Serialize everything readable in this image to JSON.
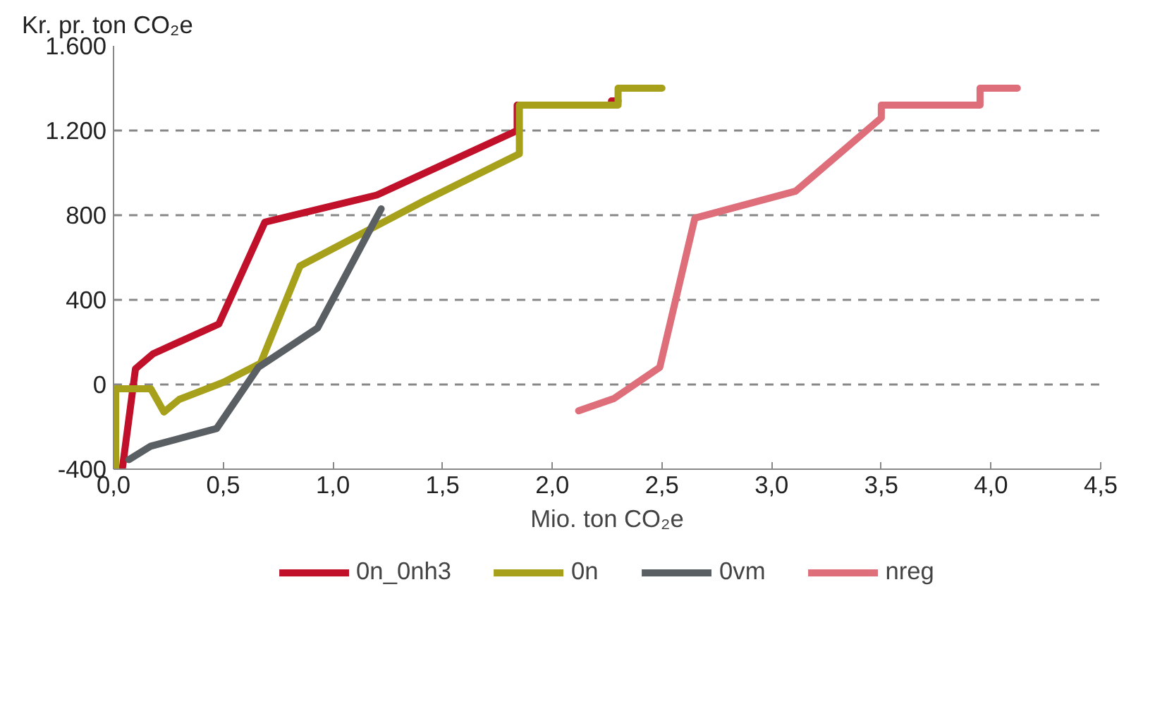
{
  "chart_data": {
    "type": "line",
    "ylabel": "Kr. pr. ton CO₂e",
    "xlabel": "Mio. ton CO₂e",
    "xlim": [
      0,
      4.5
    ],
    "ylim": [
      -400,
      1600
    ],
    "xticks": [
      {
        "value": 0,
        "label": "0,0"
      },
      {
        "value": 0.5,
        "label": "0,5"
      },
      {
        "value": 1,
        "label": "1,0"
      },
      {
        "value": 1.5,
        "label": "1,5"
      },
      {
        "value": 2,
        "label": "2,0"
      },
      {
        "value": 2.5,
        "label": "2,5"
      },
      {
        "value": 3,
        "label": "3,0"
      },
      {
        "value": 3.5,
        "label": "3,5"
      },
      {
        "value": 4,
        "label": "4,0"
      },
      {
        "value": 4.5,
        "label": "4,5"
      }
    ],
    "yticks": [
      {
        "value": -400,
        "label": "-400"
      },
      {
        "value": 0,
        "label": "0"
      },
      {
        "value": 400,
        "label": "400"
      },
      {
        "value": 800,
        "label": "800"
      },
      {
        "value": 1200,
        "label": "1.200"
      },
      {
        "value": 1600,
        "label": "1.600"
      }
    ],
    "grid": "y",
    "legend": "bottom",
    "line_style": "solid",
    "marker": "none",
    "series": [
      {
        "name": "0n_0nh3",
        "color": "#c0102a",
        "x": [
          0.04,
          0.1,
          0.18,
          0.48,
          0.69,
          1.2,
          1.84,
          1.84,
          2.27,
          2.27,
          2.3
        ],
        "values": [
          -400,
          74,
          145,
          286,
          767,
          895,
          1200,
          1320,
          1320,
          1340,
          1340
        ]
      },
      {
        "name": "0n",
        "color": "#a6a01a",
        "x": [
          0.01,
          0.01,
          0.17,
          0.23,
          0.3,
          0.5,
          0.67,
          0.85,
          1.42,
          1.85,
          1.85,
          2.3,
          2.3,
          2.5
        ],
        "values": [
          -400,
          -20,
          -20,
          -130,
          -70,
          10,
          100,
          560,
          870,
          1090,
          1320,
          1320,
          1400,
          1400
        ]
      },
      {
        "name": "0vm",
        "color": "#5a5f63",
        "x": [
          0.07,
          0.17,
          0.47,
          0.66,
          0.93,
          1.22
        ],
        "values": [
          -355,
          -291,
          -208,
          81,
          267,
          830
        ]
      },
      {
        "name": "nreg",
        "color": "#dd6e7a",
        "x": [
          2.12,
          2.28,
          2.49,
          2.65,
          3.11,
          3.5,
          3.5,
          3.95,
          3.95,
          4.12
        ],
        "values": [
          -124,
          -67,
          81,
          786,
          914,
          1260,
          1320,
          1320,
          1400,
          1400
        ]
      }
    ]
  }
}
